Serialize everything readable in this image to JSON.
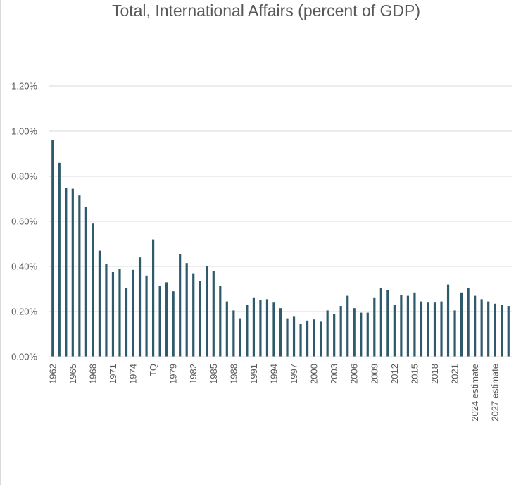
{
  "chart_data": {
    "type": "bar",
    "title": "Total, International Affairs (percent of GDP)",
    "xlabel": "",
    "ylabel": "",
    "ylim": [
      0,
      1.2
    ],
    "y_tick_values": [
      0,
      0.2,
      0.4,
      0.6,
      0.8,
      1.0,
      1.2
    ],
    "y_tick_labels": [
      "0.00%",
      "0.20%",
      "0.40%",
      "0.60%",
      "0.80%",
      "1.00%",
      "1.20%"
    ],
    "grid": true,
    "legend": "none",
    "bar_color": "#2e5a6b",
    "categories": [
      "1962",
      "1963",
      "1964",
      "1965",
      "1966",
      "1967",
      "1968",
      "1969",
      "1970",
      "1971",
      "1972",
      "1973",
      "1974",
      "1975",
      "1976",
      "TQ",
      "1977",
      "1978",
      "1979",
      "1980",
      "1981",
      "1982",
      "1983",
      "1984",
      "1985",
      "1986",
      "1987",
      "1988",
      "1989",
      "1990",
      "1991",
      "1992",
      "1993",
      "1994",
      "1995",
      "1996",
      "1997",
      "1998",
      "1999",
      "2000",
      "2001",
      "2002",
      "2003",
      "2004",
      "2005",
      "2006",
      "2007",
      "2008",
      "2009",
      "2010",
      "2011",
      "2012",
      "2013",
      "2014",
      "2015",
      "2016",
      "2017",
      "2018",
      "2019",
      "2020",
      "2021",
      "2022",
      "2023",
      "2024 estimate",
      "2025 estimate",
      "2026 estimate",
      "2027 estimate",
      "2028 estimate",
      "2029 estimate"
    ],
    "x_tick_labels": [
      "1962",
      "",
      "",
      "1965",
      "",
      "",
      "1968",
      "",
      "",
      "1971",
      "",
      "",
      "1974",
      "",
      "",
      "TQ",
      "",
      "",
      "1979",
      "",
      "",
      "1982",
      "",
      "",
      "1985",
      "",
      "",
      "1988",
      "",
      "",
      "1991",
      "",
      "",
      "1994",
      "",
      "",
      "1997",
      "",
      "",
      "2000",
      "",
      "",
      "2003",
      "",
      "",
      "2006",
      "",
      "",
      "2009",
      "",
      "",
      "2012",
      "",
      "",
      "2015",
      "",
      "",
      "2018",
      "",
      "",
      "2021",
      "",
      "",
      "2024 estimate",
      "",
      "",
      "2027 estimate",
      "",
      ""
    ],
    "values": [
      0.96,
      0.86,
      0.75,
      0.745,
      0.715,
      0.665,
      0.59,
      0.47,
      0.41,
      0.375,
      0.39,
      0.305,
      0.385,
      0.44,
      0.36,
      0.52,
      0.315,
      0.33,
      0.29,
      0.455,
      0.415,
      0.37,
      0.335,
      0.4,
      0.38,
      0.315,
      0.245,
      0.205,
      0.17,
      0.23,
      0.26,
      0.25,
      0.255,
      0.24,
      0.215,
      0.17,
      0.18,
      0.145,
      0.16,
      0.165,
      0.155,
      0.205,
      0.19,
      0.225,
      0.27,
      0.215,
      0.195,
      0.195,
      0.26,
      0.305,
      0.295,
      0.23,
      0.275,
      0.27,
      0.285,
      0.245,
      0.24,
      0.24,
      0.245,
      0.32,
      0.205,
      0.285,
      0.305,
      0.27,
      0.255,
      0.245,
      0.235,
      0.23,
      0.225
    ]
  }
}
